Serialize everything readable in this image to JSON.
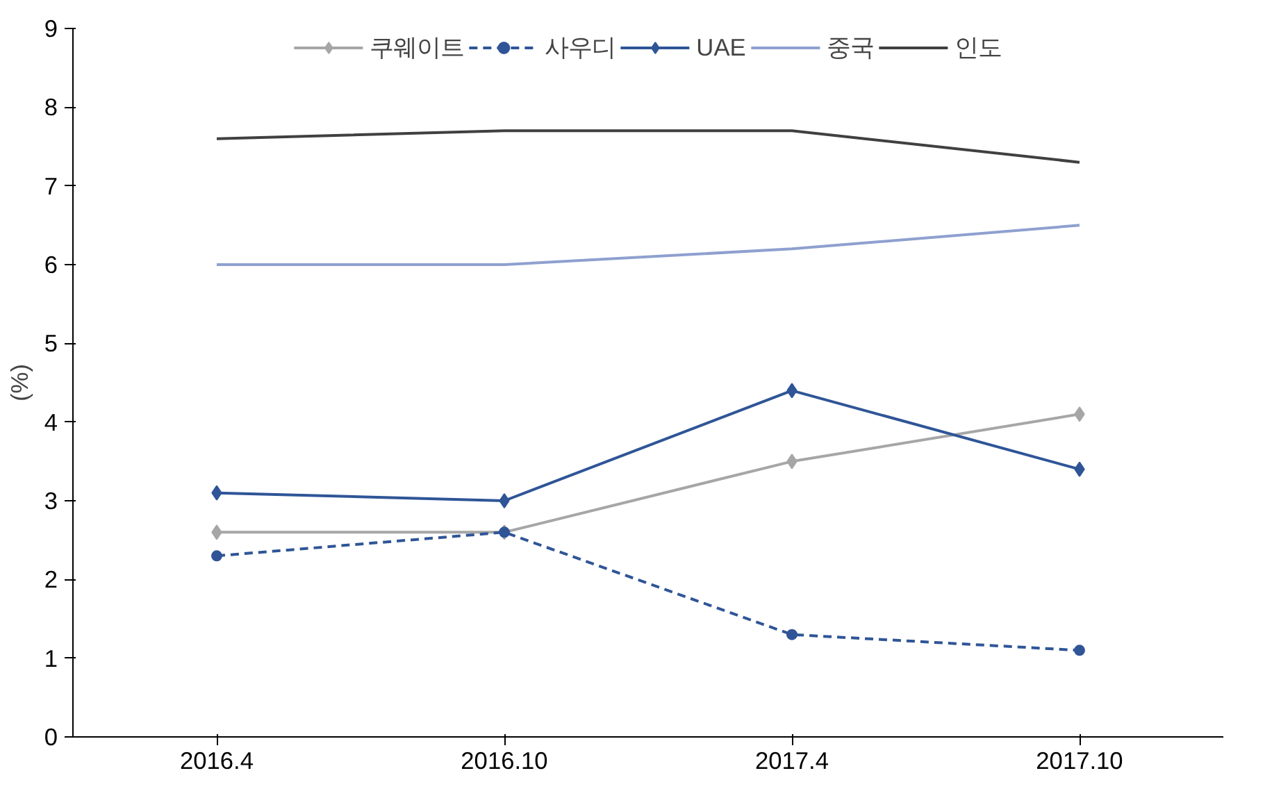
{
  "chart_data": {
    "type": "line",
    "ylabel": "(%)",
    "categories": [
      "2016.4",
      "2016.10",
      "2017.4",
      "2017.10"
    ],
    "ylim": [
      0,
      9
    ],
    "yticks": [
      0,
      1,
      2,
      3,
      4,
      5,
      6,
      7,
      8,
      9
    ],
    "grid": false,
    "legend": "top",
    "series": [
      {
        "name": "쿠웨이트",
        "color": "#a6a6a6",
        "marker": "diamond",
        "line_style": "solid",
        "values": [
          2.6,
          2.6,
          3.5,
          4.1
        ]
      },
      {
        "name": "사우디",
        "color": "#2f5597",
        "marker": "circle",
        "line_style": "dashed",
        "values": [
          2.3,
          2.6,
          1.3,
          1.1
        ]
      },
      {
        "name": "UAE",
        "color": "#2f5597",
        "marker": "diamond",
        "line_style": "solid",
        "values": [
          3.1,
          3.0,
          4.4,
          3.4
        ]
      },
      {
        "name": "중국",
        "color": "#8ea0cf",
        "marker": "none",
        "line_style": "solid",
        "values": [
          6.0,
          6.0,
          6.2,
          6.5
        ]
      },
      {
        "name": "인도",
        "color": "#404040",
        "marker": "none",
        "line_style": "solid",
        "values": [
          7.6,
          7.7,
          7.7,
          7.3
        ]
      }
    ]
  }
}
